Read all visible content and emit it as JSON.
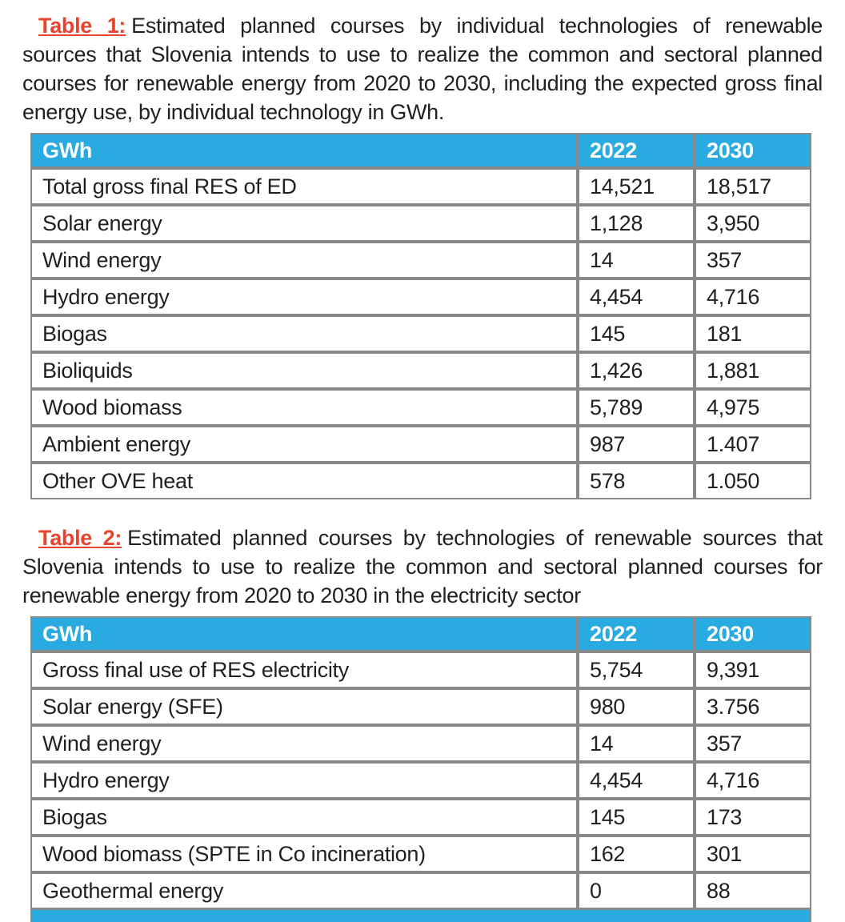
{
  "colors": {
    "header_bg": "#29abe2",
    "header_text": "#ffffff",
    "border_gray": "#898989",
    "caption_label_red": "#e8432d",
    "body_text": "#231f20",
    "page_bg": "#ffffff"
  },
  "tables": [
    {
      "caption_label": "Table 1:",
      "caption_text": "Estimated planned courses by individual technologies of renewable sources that Slovenia intends to use to realize the common and sectoral planned courses for renewable energy from 2020 to 2030, including the expected gross final energy use, by individual technology in GWh.",
      "columns": [
        "GWh",
        "2022",
        "2030"
      ],
      "rows": [
        [
          "Total gross final RES of ED",
          "14,521",
          "18,517"
        ],
        [
          "Solar energy",
          "1,128",
          "3,950"
        ],
        [
          "Wind energy",
          "14",
          "357"
        ],
        [
          "Hydro energy",
          "4,454",
          "4,716"
        ],
        [
          "Biogas",
          "145",
          "181"
        ],
        [
          "Bioliquids",
          "1,426",
          "1,881"
        ],
        [
          "Wood biomass",
          "5,789",
          "4,975"
        ],
        [
          "Ambient energy",
          "987",
          "1.407"
        ],
        [
          "Other OVE heat",
          "578",
          "1.050"
        ]
      ]
    },
    {
      "caption_label": "Table 2:",
      "caption_text": "Estimated planned courses by technologies of renewable sources that Slovenia intends to use to realize the common and sectoral planned courses for renewable energy from 2020 to 2030 in the electricity sector",
      "columns": [
        "GWh",
        "2022",
        "2030"
      ],
      "rows": [
        [
          "Gross final use of RES electricity",
          "5,754",
          "9,391"
        ],
        [
          "Solar energy (SFE)",
          "980",
          "3.756"
        ],
        [
          "Wind energy",
          "14",
          "357"
        ],
        [
          "Hydro energy",
          "4,454",
          "4,716"
        ],
        [
          "Biogas",
          "145",
          "173"
        ],
        [
          "Wood biomass (SPTE in Co incineration)",
          "162",
          "301"
        ],
        [
          "Geothermal energy",
          "0",
          "88"
        ]
      ]
    }
  ],
  "cropped_next_header_bar": true
}
